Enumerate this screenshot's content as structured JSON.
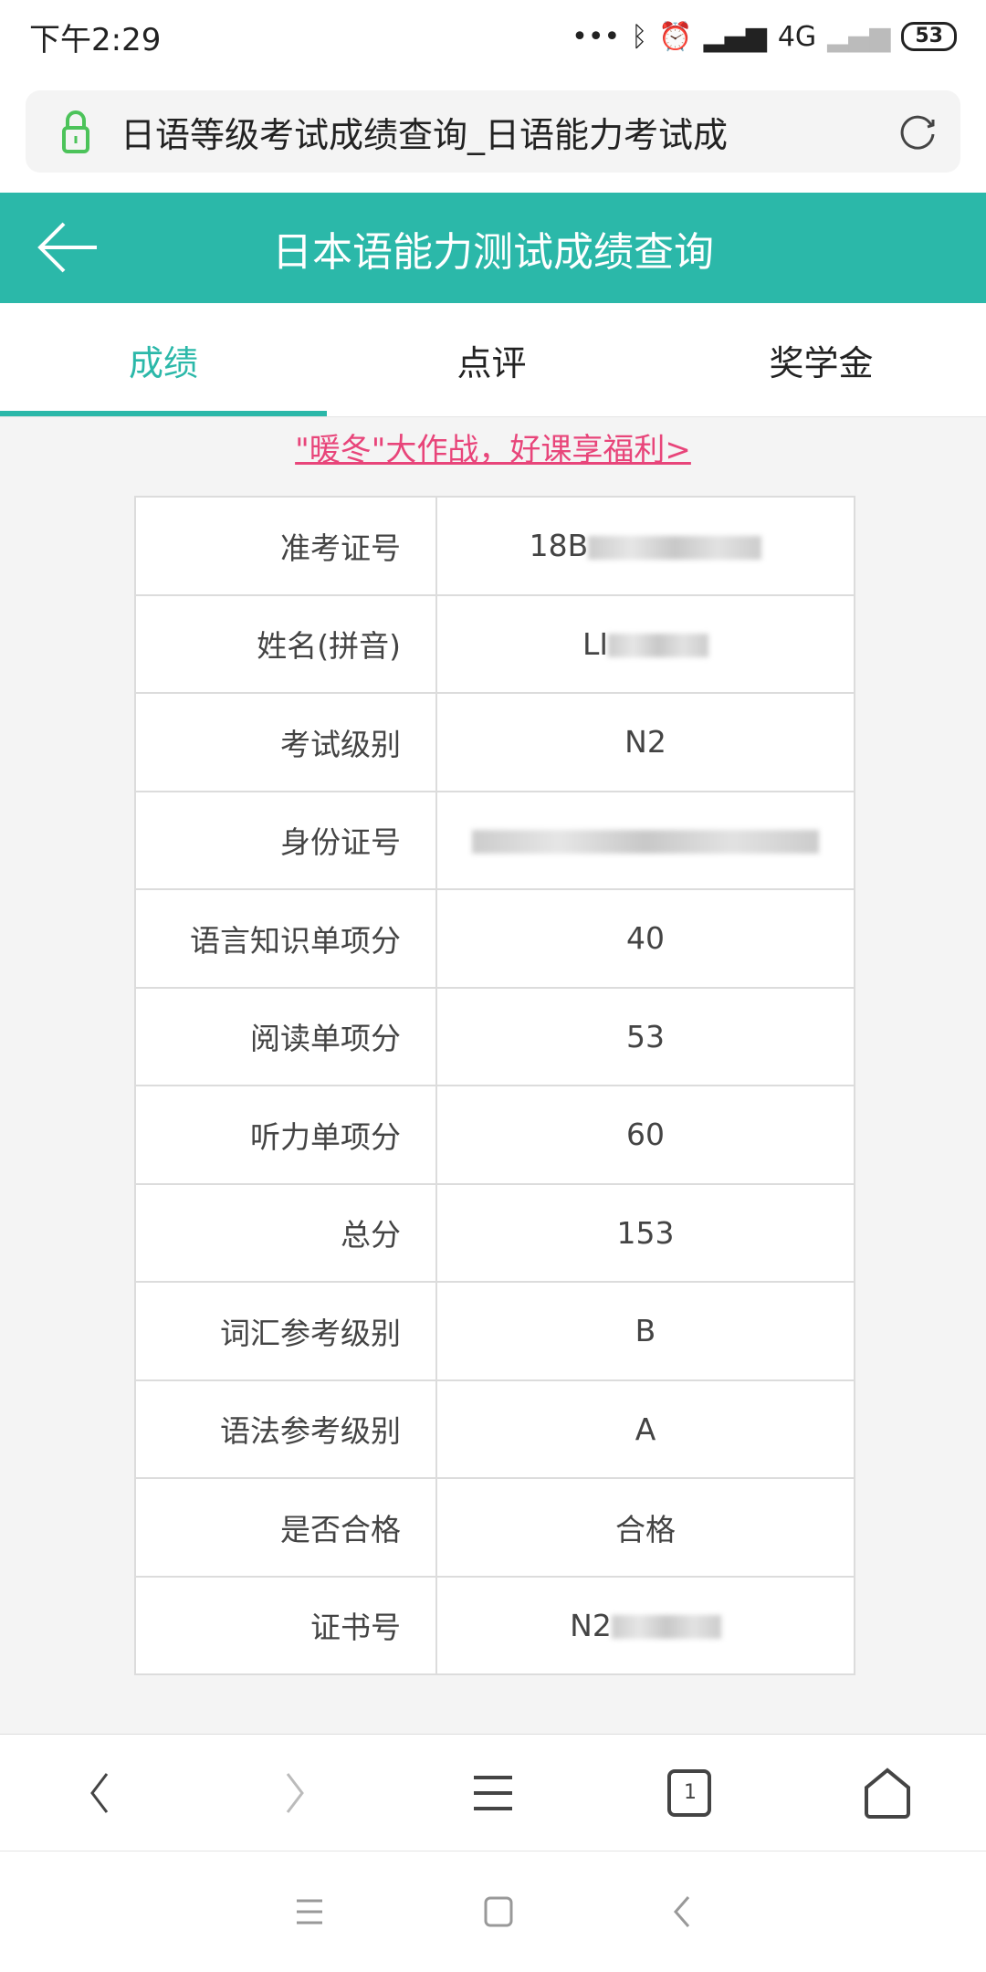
{
  "status_bar": {
    "time": "下午2:29",
    "network": "4G",
    "battery": "53"
  },
  "browser": {
    "url_title": "日语等级考试成绩查询_日语能力考试成",
    "tab_count": "1"
  },
  "header": {
    "title": "日本语能力测试成绩查询"
  },
  "tabs": [
    {
      "label": "成绩",
      "active": true
    },
    {
      "label": "点评"
    },
    {
      "label": "奖学金"
    }
  ],
  "promo": {
    "text": "\"暖冬\"大作战，好课享福利>"
  },
  "colors": {
    "accent": "#2bb8a9",
    "promo": "#e8457a"
  },
  "results": [
    {
      "label": "准考证号",
      "value": "18B",
      "redacted": true
    },
    {
      "label": "姓名(拼音)",
      "value": "LI",
      "redacted": true
    },
    {
      "label": "考试级别",
      "value": "N2"
    },
    {
      "label": "身份证号",
      "value": "",
      "redacted": true
    },
    {
      "label": "语言知识单项分",
      "value": "40"
    },
    {
      "label": "阅读单项分",
      "value": "53"
    },
    {
      "label": "听力单项分",
      "value": "60"
    },
    {
      "label": "总分",
      "value": "153"
    },
    {
      "label": "词汇参考级别",
      "value": "B"
    },
    {
      "label": "语法参考级别",
      "value": "A"
    },
    {
      "label": "是否合格",
      "value": "合格"
    },
    {
      "label": "证书号",
      "value": "N2",
      "redacted": true
    }
  ]
}
